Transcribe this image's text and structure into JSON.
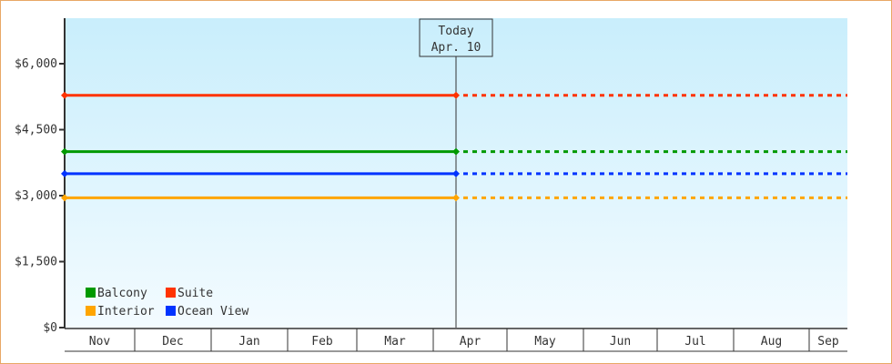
{
  "chart_data": {
    "type": "line",
    "title": "",
    "xlabel": "",
    "ylabel": "",
    "ylim": [
      0,
      7000
    ],
    "y_ticks": [
      "$0",
      "$1,500",
      "$3,000",
      "$4,500",
      "$6,000"
    ],
    "y_tick_values": [
      0,
      1500,
      3000,
      4500,
      6000
    ],
    "categories": [
      "Nov",
      "Dec",
      "Jan",
      "Feb",
      "Mar",
      "Apr",
      "May",
      "Jun",
      "Jul",
      "Aug",
      "Sep"
    ],
    "grid": false,
    "legend_placement": "bottom-left",
    "today_marker": {
      "label": "Today",
      "date": "Apr. 10"
    },
    "series": [
      {
        "name": "Suite",
        "color": "#ff3300",
        "value": 5280
      },
      {
        "name": "Balcony",
        "color": "#009900",
        "value": 4000
      },
      {
        "name": "Ocean View",
        "color": "#0033ff",
        "value": 3500
      },
      {
        "name": "Interior",
        "color": "#ffa500",
        "value": 2950
      }
    ],
    "note_style": "solid before today, dotted after today"
  },
  "legend_order": [
    "Balcony",
    "Suite",
    "Interior",
    "Ocean View"
  ]
}
